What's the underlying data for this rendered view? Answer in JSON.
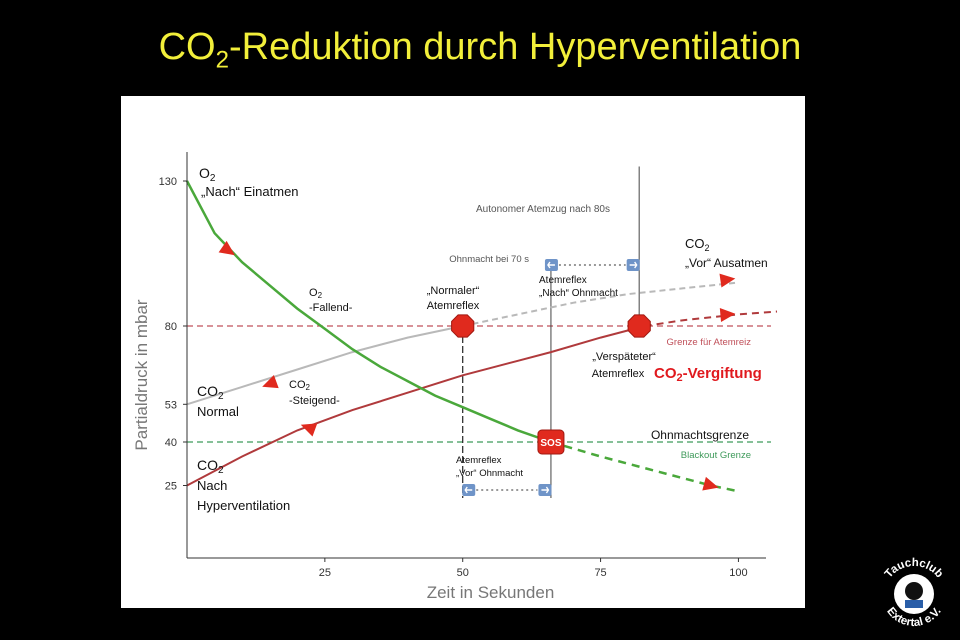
{
  "slide": {
    "title_main": "CO",
    "title_sub": "2",
    "title_rest": "-Reduktion durch Hyperventilation"
  },
  "logo": {
    "text_top": "Tauchclub",
    "text_bottom": "Extertal e.V."
  },
  "colors": {
    "title": "#f2ef3a",
    "o2": "#4aa83b",
    "co2_hyper": "#b03a3c",
    "co2_normal": "#b9b9b9",
    "atemreiz": "#c0505a",
    "blackout": "#3e9a5a",
    "marker": "#e02a1e",
    "vergiftung": "#e0191e"
  },
  "chart_data": {
    "type": "line",
    "xlabel": "Zeit in Sekunden",
    "ylabel": "Partialdruck in mbar",
    "xlim": [
      0,
      105
    ],
    "ylim": [
      0,
      140
    ],
    "x_ticks": [
      25,
      50,
      75,
      100
    ],
    "y_ticks": [
      25,
      40,
      53,
      80,
      130
    ],
    "grid": false,
    "series": [
      {
        "key": "o2",
        "x": [
          0,
          5,
          10,
          15,
          20,
          25,
          30,
          35,
          40,
          45,
          50,
          55,
          60,
          66
        ],
        "y": [
          130,
          112,
          102,
          94,
          86,
          79,
          72,
          66,
          61,
          56,
          52,
          48,
          44,
          40
        ],
        "extension": {
          "x": [
            66,
            75,
            85,
            95,
            100
          ],
          "y": [
            40,
            35,
            30,
            25,
            23
          ]
        }
      },
      {
        "key": "co2_normal",
        "x": [
          0,
          10,
          20,
          30,
          40,
          50,
          60,
          70,
          80,
          90,
          100
        ],
        "y": [
          53,
          59,
          65,
          71,
          76,
          80,
          84,
          88,
          91,
          93,
          95
        ],
        "dashed_from_x": 50
      },
      {
        "key": "co2_hyper",
        "x": [
          0,
          10,
          20,
          30,
          40,
          50,
          60,
          66,
          75,
          83
        ],
        "y": [
          25,
          35,
          44,
          51,
          57,
          63,
          68,
          71,
          76,
          80
        ],
        "extension": {
          "x": [
            83,
            90,
            100,
            107
          ],
          "y": [
            80,
            82,
            84,
            85
          ]
        }
      }
    ],
    "reference_lines": [
      {
        "key": "atemreiz",
        "y": 80,
        "label": "Grenze für Atemreiz"
      },
      {
        "key": "blackout",
        "y": 40,
        "label": "Blackout Grenze",
        "label2": "Ohnmachtsgrenze"
      }
    ],
    "vertical_lines": [
      {
        "x": 66,
        "label": "Ohnmacht bei 70 s"
      },
      {
        "x": 82,
        "label": "Autonomer Atemzug nach 80s"
      },
      {
        "x": 50,
        "label": ""
      }
    ],
    "annotations": {
      "o2_title": "O",
      "o2_sub": "2",
      "o2_line2": "„Nach“ Einatmen",
      "o2_fall_title": "O",
      "o2_fall_sub": "2",
      "o2_fall_line2": "-Fallend-",
      "co2_normal_title": "CO",
      "co2_normal_sub": "2",
      "co2_normal_line2": "Normal",
      "co2_steig_title": "CO",
      "co2_steig_sub": "2",
      "co2_steig_line2": "-Steigend-",
      "co2_hyper_title": "CO",
      "co2_hyper_sub": "2",
      "co2_hyper_line2": "Nach",
      "co2_hyper_line3": "Hyperventilation",
      "co2_vor_title": "CO",
      "co2_vor_sub": "2",
      "co2_vor_line2": "„Vor“ Ausatmen",
      "normal_reflex_1": "„Normaler“",
      "normal_reflex_2": "Atemreflex",
      "late_reflex_1": "„Verspäteter“",
      "late_reflex_2": "Atemreflex",
      "vergiftung_main": "CO",
      "vergiftung_sub": "2",
      "vergiftung_rest": "-Vergiftung",
      "nach_ohnmacht_1": "Atemreflex",
      "nach_ohnmacht_2": "„Nach“ Ohnmacht",
      "vor_ohnmacht_1": "Atemreflex",
      "vor_ohnmacht_2": "„Vor“ Ohnmacht",
      "sos": "SOS"
    }
  }
}
